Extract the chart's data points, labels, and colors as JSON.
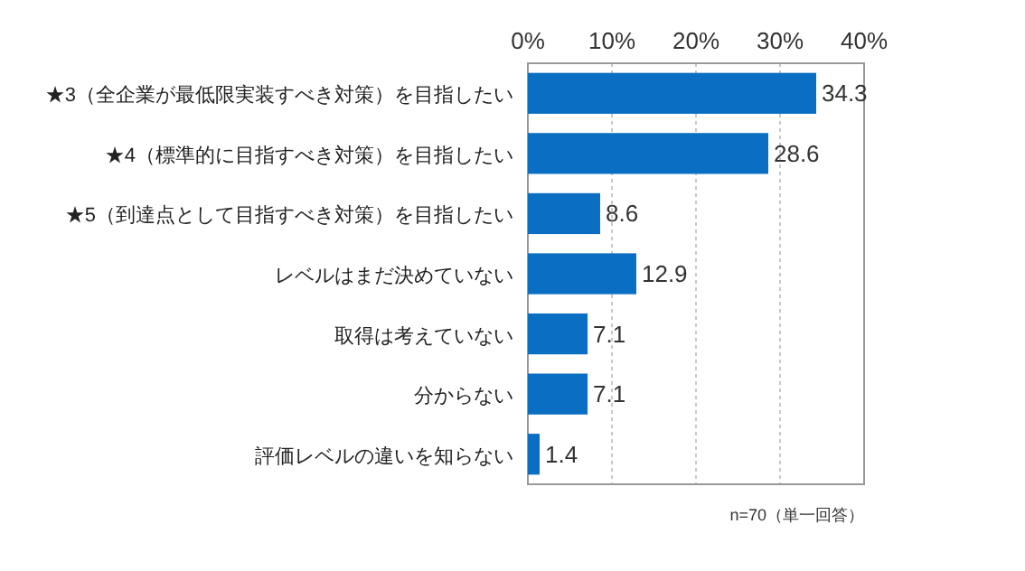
{
  "chart_data": {
    "type": "bar",
    "orientation": "horizontal",
    "categories": [
      "★3（全企業が最低限実装すべき対策）を目指したい",
      "★4（標準的に目指すべき対策）を目指したい",
      "★5（到達点として目指すべき対策）を目指したい",
      "レベルはまだ決めていない",
      "取得は考えていない",
      "分からない",
      "評価レベルの違いを知らない"
    ],
    "values": [
      34.3,
      28.6,
      8.6,
      12.9,
      7.1,
      7.1,
      1.4
    ],
    "color": "#0a6fc2",
    "xlim": [
      0,
      40
    ],
    "xticks": [
      {
        "value": 0,
        "label": "0%"
      },
      {
        "value": 10,
        "label": "10%"
      },
      {
        "value": 20,
        "label": "20%"
      },
      {
        "value": 30,
        "label": "30%"
      },
      {
        "value": 40,
        "label": "40%"
      }
    ],
    "grid": "x",
    "data_labels": true,
    "annotations": [
      "n=70（単一回答）"
    ]
  }
}
